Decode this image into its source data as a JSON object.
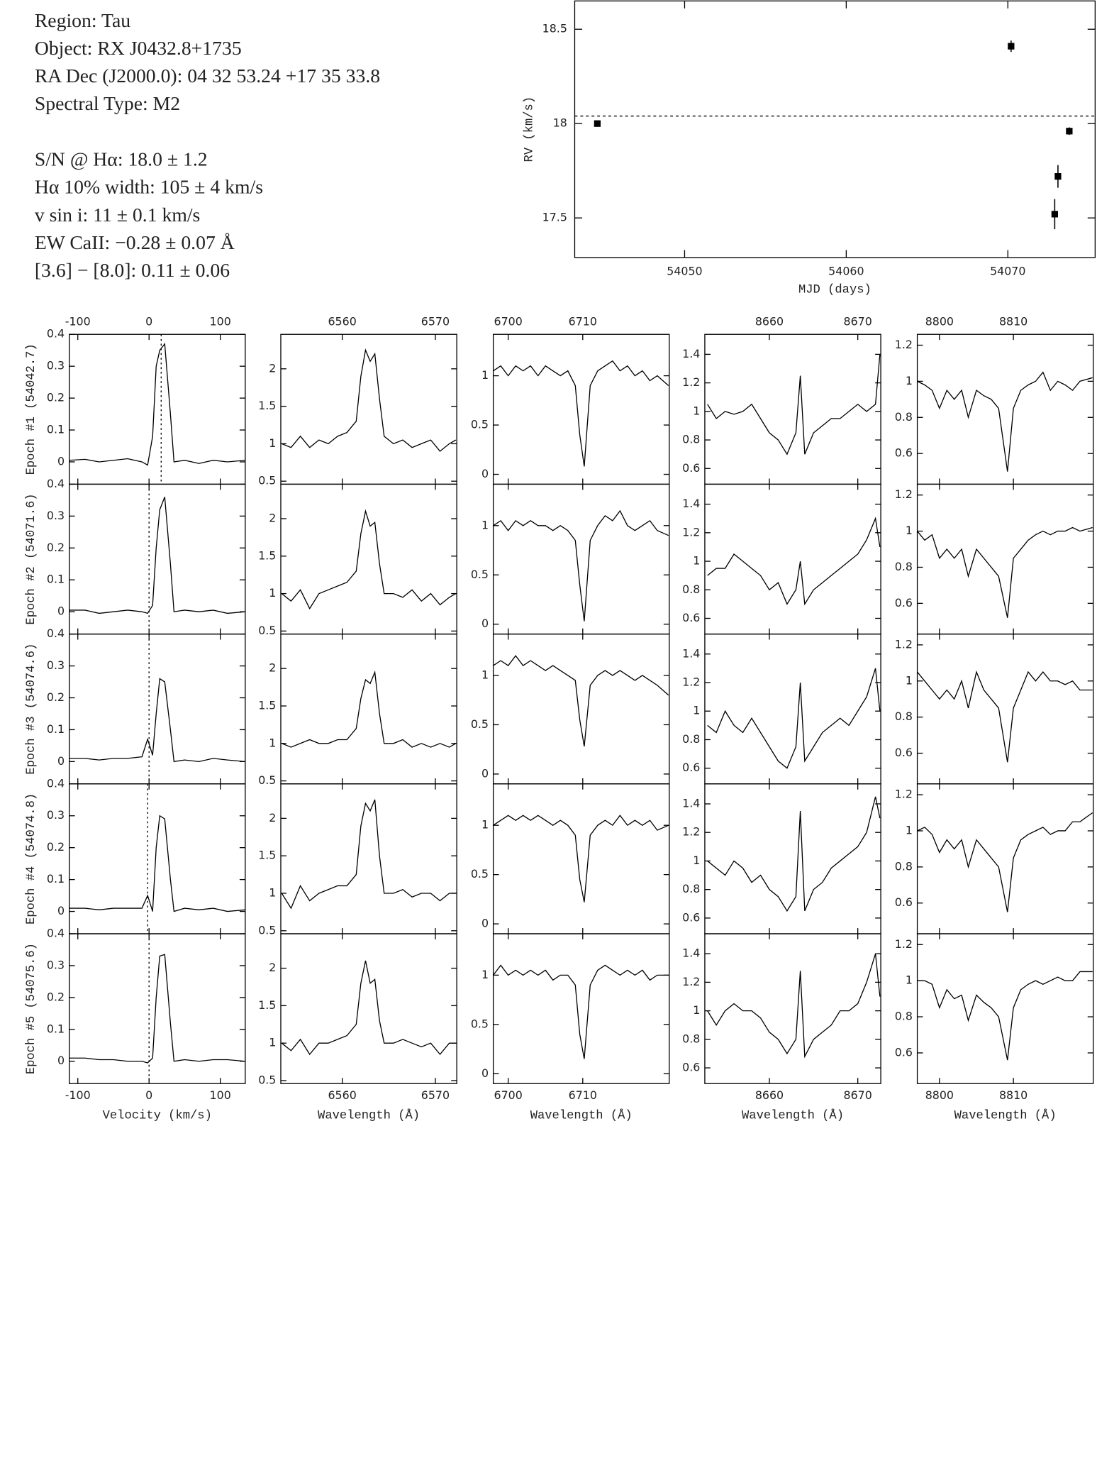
{
  "header": {
    "star": [
      "Region: Tau",
      "Object: RX J0432.8+1735",
      "RA Dec (J2000.0): 04 32 53.24 +17 35 33.8",
      "Spectral Type: M2"
    ],
    "measurements": [
      "S/N @ Hα: 18.0 ± 1.2",
      "Hα 10% width: 105 ± 4 km/s",
      "v sin i: 11 ± 0.1 km/s",
      "EW CaII: −0.28 ± 0.07 Å",
      "[3.6] − [8.0]: 0.11 ± 0.06"
    ]
  },
  "chart_data": [
    {
      "type": "scatter",
      "xlabel": "MJD (days)",
      "ylabel": "RV (km/s)",
      "x": [
        54044.6,
        54070.2,
        54072.9,
        54073.1,
        54073.8
      ],
      "values": [
        18.0,
        18.41,
        17.52,
        17.72,
        17.96
      ],
      "errors": [
        0.01,
        0.03,
        0.08,
        0.06,
        0.02
      ],
      "reference_line": 18.04,
      "color": "#000000",
      "xlim": [
        54043.2,
        54075.4
      ],
      "ylim": [
        17.29,
        18.65
      ],
      "xticks": [
        54050,
        54060,
        54070
      ],
      "yticks": [
        17.5,
        18,
        18.5
      ]
    },
    {
      "type": "line",
      "xlabel": "Velocity (km/s)",
      "color": "#000000",
      "xlim": [
        -112,
        135
      ],
      "ylim": [
        -0.07,
        0.4
      ],
      "xticks": [
        -100,
        0,
        100
      ],
      "yticks": [
        0,
        0.1,
        0.2,
        0.3,
        0.4
      ],
      "reference_lines": [
        17,
        0,
        0,
        -2,
        0
      ],
      "x": [
        -112,
        -90,
        -70,
        -50,
        -30,
        -10,
        -2,
        5,
        10,
        15,
        22,
        30,
        35,
        50,
        70,
        90,
        110,
        135
      ],
      "series": [
        {
          "name": "Epoch #1 (54042.7)",
          "values": [
            0.005,
            0.008,
            0.0,
            0.005,
            0.01,
            0.0,
            -0.01,
            0.08,
            0.3,
            0.35,
            0.37,
            0.15,
            0.0,
            0.005,
            -0.005,
            0.005,
            0.0,
            0.005
          ]
        },
        {
          "name": "Epoch #2 (54071.6)",
          "values": [
            0.005,
            0.005,
            -0.005,
            0.0,
            0.005,
            0.0,
            -0.005,
            0.02,
            0.2,
            0.32,
            0.36,
            0.15,
            0.0,
            0.005,
            0.0,
            0.005,
            -0.005,
            0.0
          ]
        },
        {
          "name": "Epoch #3 (54074.6)",
          "values": [
            0.01,
            0.01,
            0.005,
            0.01,
            0.01,
            0.015,
            0.07,
            0.02,
            0.15,
            0.26,
            0.25,
            0.1,
            0.0,
            0.005,
            0.0,
            0.01,
            0.005,
            0.0
          ]
        },
        {
          "name": "Epoch #4 (54074.8)",
          "values": [
            0.01,
            0.01,
            0.005,
            0.01,
            0.01,
            0.01,
            0.05,
            0.0,
            0.2,
            0.3,
            0.29,
            0.1,
            0.0,
            0.01,
            0.005,
            0.01,
            0.0,
            0.005
          ]
        },
        {
          "name": "Epoch #5 (54075.6)",
          "values": [
            0.01,
            0.01,
            0.005,
            0.005,
            0.0,
            0.0,
            -0.005,
            0.01,
            0.2,
            0.33,
            0.335,
            0.12,
            0.0,
            0.005,
            0.0,
            0.005,
            0.005,
            0.0
          ]
        }
      ]
    },
    {
      "type": "line",
      "xlabel": "Wavelength (Å)",
      "color": "#000000",
      "xlim": [
        6553.4,
        6572.3
      ],
      "ylim": [
        0.46,
        2.46
      ],
      "xticks": [
        6560,
        6570
      ],
      "yticks": [
        0.5,
        1,
        1.5,
        2
      ],
      "x": [
        6553.5,
        6554.5,
        6555.5,
        6556.5,
        6557.5,
        6558.5,
        6559.5,
        6560.5,
        6561.5,
        6562,
        6562.5,
        6563,
        6563.5,
        6564,
        6564.5,
        6565.5,
        6566.5,
        6567.5,
        6568.5,
        6569.5,
        6570.5,
        6571.5,
        6572.2
      ],
      "series": [
        {
          "values": [
            1.0,
            0.95,
            1.1,
            0.95,
            1.05,
            1.0,
            1.1,
            1.15,
            1.3,
            1.9,
            2.25,
            2.1,
            2.2,
            1.6,
            1.1,
            1.0,
            1.05,
            0.95,
            1.0,
            1.05,
            0.9,
            1.0,
            1.05
          ]
        },
        {
          "values": [
            1.0,
            0.9,
            1.05,
            0.8,
            1.0,
            1.05,
            1.1,
            1.15,
            1.3,
            1.8,
            2.1,
            1.9,
            1.95,
            1.4,
            1.0,
            1.0,
            0.95,
            1.05,
            0.9,
            1.0,
            0.85,
            0.95,
            1.0
          ]
        },
        {
          "values": [
            1.0,
            0.95,
            1.0,
            1.05,
            1.0,
            1.0,
            1.05,
            1.05,
            1.2,
            1.6,
            1.85,
            1.8,
            1.95,
            1.4,
            1.0,
            1.0,
            1.05,
            0.95,
            1.0,
            0.95,
            1.0,
            0.95,
            1.0
          ]
        },
        {
          "values": [
            1.0,
            0.8,
            1.1,
            0.9,
            1.0,
            1.05,
            1.1,
            1.1,
            1.25,
            1.9,
            2.2,
            2.1,
            2.25,
            1.5,
            1.0,
            1.0,
            1.05,
            0.95,
            1.0,
            1.0,
            0.9,
            1.0,
            1.0
          ]
        },
        {
          "values": [
            1.0,
            0.9,
            1.05,
            0.85,
            1.0,
            1.0,
            1.05,
            1.1,
            1.25,
            1.8,
            2.1,
            1.8,
            1.85,
            1.3,
            1.0,
            1.0,
            1.05,
            1.0,
            0.95,
            1.0,
            0.85,
            1.0,
            1.0
          ]
        }
      ]
    },
    {
      "type": "line",
      "xlabel": "Wavelength (Å)",
      "color": "#000000",
      "xlim": [
        6698,
        6721.6
      ],
      "ylim": [
        -0.1,
        1.42
      ],
      "xticks": [
        6700,
        6710
      ],
      "yticks": [
        0,
        0.5,
        1
      ],
      "x": [
        6698,
        6699,
        6700,
        6701,
        6702,
        6703,
        6704,
        6705,
        6706,
        6707,
        6708,
        6709,
        6709.6,
        6710.2,
        6711,
        6712,
        6713,
        6714,
        6715,
        6716,
        6717,
        6718,
        6719,
        6720,
        6721.5
      ],
      "series": [
        {
          "values": [
            1.05,
            1.1,
            1.0,
            1.1,
            1.05,
            1.1,
            1.0,
            1.1,
            1.05,
            1.0,
            1.05,
            0.9,
            0.4,
            0.08,
            0.9,
            1.05,
            1.1,
            1.15,
            1.05,
            1.1,
            1.0,
            1.05,
            0.95,
            1.0,
            0.9
          ]
        },
        {
          "values": [
            1.0,
            1.05,
            0.95,
            1.05,
            1.0,
            1.05,
            1.0,
            1.0,
            0.95,
            1.0,
            0.95,
            0.85,
            0.4,
            0.03,
            0.85,
            1.0,
            1.1,
            1.05,
            1.15,
            1.0,
            0.95,
            1.0,
            1.05,
            0.95,
            0.9
          ]
        },
        {
          "values": [
            1.1,
            1.15,
            1.1,
            1.2,
            1.1,
            1.15,
            1.1,
            1.05,
            1.1,
            1.05,
            1.0,
            0.95,
            0.55,
            0.28,
            0.9,
            1.0,
            1.05,
            1.0,
            1.05,
            1.0,
            0.95,
            1.0,
            0.95,
            0.9,
            0.8
          ]
        },
        {
          "values": [
            1.0,
            1.05,
            1.1,
            1.05,
            1.1,
            1.05,
            1.1,
            1.05,
            1.0,
            1.05,
            1.0,
            0.9,
            0.45,
            0.22,
            0.9,
            1.0,
            1.05,
            1.0,
            1.1,
            1.0,
            1.05,
            1.0,
            1.05,
            0.95,
            1.0
          ]
        },
        {
          "values": [
            1.0,
            1.1,
            1.0,
            1.05,
            1.0,
            1.05,
            1.0,
            1.05,
            0.95,
            1.0,
            1.0,
            0.9,
            0.4,
            0.15,
            0.9,
            1.05,
            1.1,
            1.05,
            1.0,
            1.05,
            1.0,
            1.05,
            0.95,
            1.0,
            1.0
          ]
        }
      ]
    },
    {
      "type": "line",
      "xlabel": "Wavelength (Å)",
      "color": "#000000",
      "xlim": [
        8652.7,
        8672.6
      ],
      "ylim": [
        0.49,
        1.54
      ],
      "xticks": [
        8660,
        8670
      ],
      "yticks": [
        0.6,
        0.8,
        1,
        1.2,
        1.4
      ],
      "x": [
        8653,
        8654,
        8655,
        8656,
        8657,
        8658,
        8659,
        8660,
        8661,
        8662,
        8663,
        8663.5,
        8664,
        8665,
        8666,
        8667,
        8668,
        8669,
        8670,
        8671,
        8672,
        8672.5
      ],
      "series": [
        {
          "values": [
            1.05,
            0.95,
            1.0,
            0.98,
            1.0,
            1.05,
            0.95,
            0.85,
            0.8,
            0.7,
            0.85,
            1.25,
            0.7,
            0.85,
            0.9,
            0.95,
            0.95,
            1.0,
            1.05,
            1.0,
            1.05,
            1.4
          ]
        },
        {
          "values": [
            0.9,
            0.95,
            0.95,
            1.05,
            1.0,
            0.95,
            0.9,
            0.8,
            0.85,
            0.7,
            0.8,
            1.0,
            0.7,
            0.8,
            0.85,
            0.9,
            0.95,
            1.0,
            1.05,
            1.15,
            1.3,
            1.1
          ]
        },
        {
          "values": [
            0.9,
            0.85,
            1.0,
            0.9,
            0.85,
            0.95,
            0.85,
            0.75,
            0.65,
            0.6,
            0.75,
            1.2,
            0.65,
            0.75,
            0.85,
            0.9,
            0.95,
            0.9,
            1.0,
            1.1,
            1.3,
            1.0
          ]
        },
        {
          "values": [
            1.0,
            0.95,
            0.9,
            1.0,
            0.95,
            0.85,
            0.9,
            0.8,
            0.75,
            0.65,
            0.75,
            1.35,
            0.65,
            0.8,
            0.85,
            0.95,
            1.0,
            1.05,
            1.1,
            1.2,
            1.45,
            1.3
          ]
        },
        {
          "values": [
            1.0,
            0.9,
            1.0,
            1.05,
            1.0,
            1.0,
            0.95,
            0.85,
            0.8,
            0.7,
            0.8,
            1.28,
            0.68,
            0.8,
            0.85,
            0.9,
            1.0,
            1.0,
            1.05,
            1.2,
            1.4,
            1.1
          ]
        }
      ]
    },
    {
      "type": "line",
      "xlabel": "Wavelength (Å)",
      "color": "#000000",
      "xlim": [
        8797,
        8820.8
      ],
      "ylim": [
        0.43,
        1.26
      ],
      "xticks": [
        8800,
        8810
      ],
      "yticks": [
        0.6,
        0.8,
        1,
        1.2
      ],
      "x": [
        8797,
        8798,
        8799,
        8800,
        8801,
        8802,
        8803,
        8803.9,
        8805,
        8806,
        8807,
        8808,
        8809.2,
        8810,
        8811,
        8812,
        8813,
        8814,
        8815,
        8816,
        8817,
        8818,
        8819,
        8820.7
      ],
      "series": [
        {
          "values": [
            1.0,
            0.98,
            0.95,
            0.85,
            0.95,
            0.9,
            0.95,
            0.8,
            0.95,
            0.92,
            0.9,
            0.85,
            0.5,
            0.85,
            0.95,
            0.98,
            1.0,
            1.05,
            0.95,
            1.0,
            0.98,
            0.95,
            1.0,
            1.02
          ]
        },
        {
          "values": [
            1.0,
            0.95,
            0.98,
            0.85,
            0.9,
            0.85,
            0.9,
            0.75,
            0.9,
            0.85,
            0.8,
            0.75,
            0.52,
            0.85,
            0.9,
            0.95,
            0.98,
            1.0,
            0.98,
            1.0,
            1.0,
            1.02,
            1.0,
            1.02
          ]
        },
        {
          "values": [
            1.05,
            1.0,
            0.95,
            0.9,
            0.95,
            0.9,
            1.0,
            0.85,
            1.05,
            0.95,
            0.9,
            0.85,
            0.55,
            0.85,
            0.95,
            1.05,
            1.0,
            1.05,
            1.0,
            1.0,
            0.98,
            1.0,
            0.95,
            0.95
          ]
        },
        {
          "values": [
            1.0,
            1.02,
            0.98,
            0.88,
            0.95,
            0.9,
            0.95,
            0.8,
            0.95,
            0.9,
            0.85,
            0.8,
            0.55,
            0.85,
            0.95,
            0.98,
            1.0,
            1.02,
            0.98,
            1.0,
            1.0,
            1.05,
            1.05,
            1.1
          ]
        },
        {
          "values": [
            1.0,
            1.0,
            0.98,
            0.85,
            0.95,
            0.9,
            0.92,
            0.78,
            0.92,
            0.88,
            0.85,
            0.8,
            0.56,
            0.85,
            0.95,
            0.98,
            1.0,
            0.98,
            1.0,
            1.02,
            1.0,
            1.0,
            1.05,
            1.05
          ]
        }
      ]
    }
  ]
}
